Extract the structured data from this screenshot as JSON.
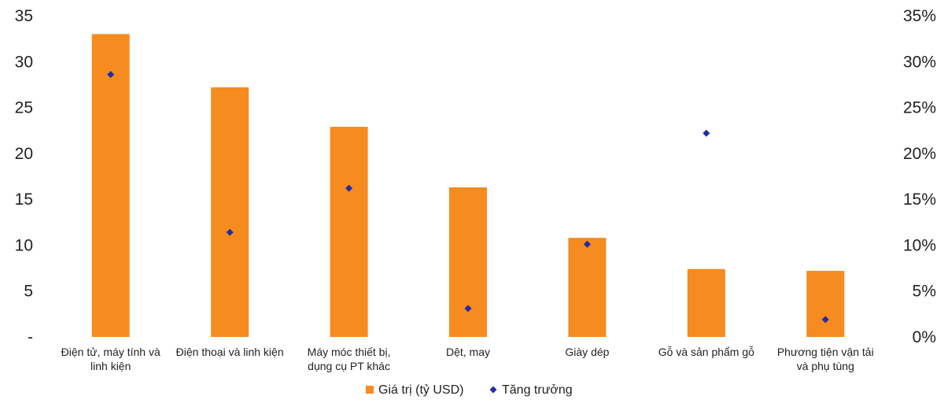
{
  "chart_data": {
    "type": "bar",
    "categories": [
      [
        "Điện tử, máy tính và",
        "linh kiện"
      ],
      [
        "Điện thoại và linh kiện"
      ],
      [
        "Máy móc thiết bị,",
        "dụng cụ PT khác"
      ],
      [
        "Dệt, may"
      ],
      [
        "Giày dép"
      ],
      [
        "Gỗ và sản phẩm gỗ"
      ],
      [
        "Phương tiện vận tải",
        "và phụ tùng"
      ]
    ],
    "series": [
      {
        "name": "Giá trị (tỷ USD)",
        "type": "bar",
        "axis": "left",
        "color": "#F68B1F",
        "values": [
          33.0,
          27.2,
          22.9,
          16.3,
          10.8,
          7.4,
          7.2
        ]
      },
      {
        "name": "Tăng trưởng",
        "type": "scatter",
        "axis": "right",
        "color": "#1F2DA8",
        "values": [
          0.286,
          0.114,
          0.162,
          0.031,
          0.101,
          0.222,
          0.019
        ]
      }
    ],
    "left_axis": {
      "ylim": [
        0,
        35
      ],
      "ticks": [
        "-",
        "5",
        "10",
        "15",
        "20",
        "25",
        "30",
        "35"
      ]
    },
    "right_axis": {
      "ylim": [
        0,
        0.35
      ],
      "ticks": [
        "0%",
        "5%",
        "10%",
        "15%",
        "20%",
        "25%",
        "30%",
        "35%"
      ]
    },
    "grid": false,
    "legend": {
      "position": "bottom"
    }
  }
}
